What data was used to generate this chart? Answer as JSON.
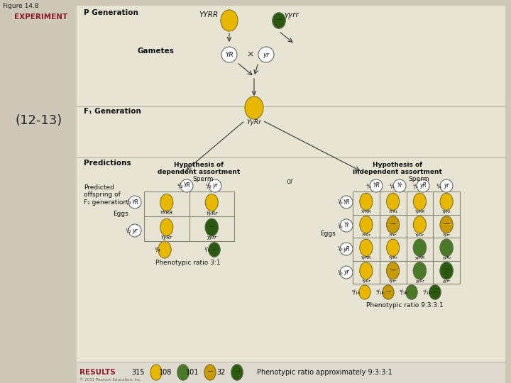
{
  "title": "Figure 14.8",
  "experiment_label": "EXPERIMENT",
  "chapter_label": "(12-13)",
  "bg_color": "#cdc8b8",
  "panel_bg": "#e8e4d4",
  "results_bg": "#dedad0",
  "experiment_color": "#8B1A2E",
  "results_color": "#8B1A2E",
  "yellow_round": "#E8B800",
  "yellow_wrinkled": "#C89A00",
  "green_round": "#4a7a28",
  "green_wrinkled": "#2a5a10",
  "copyright": "© 2011 Pearson Education, Inc."
}
